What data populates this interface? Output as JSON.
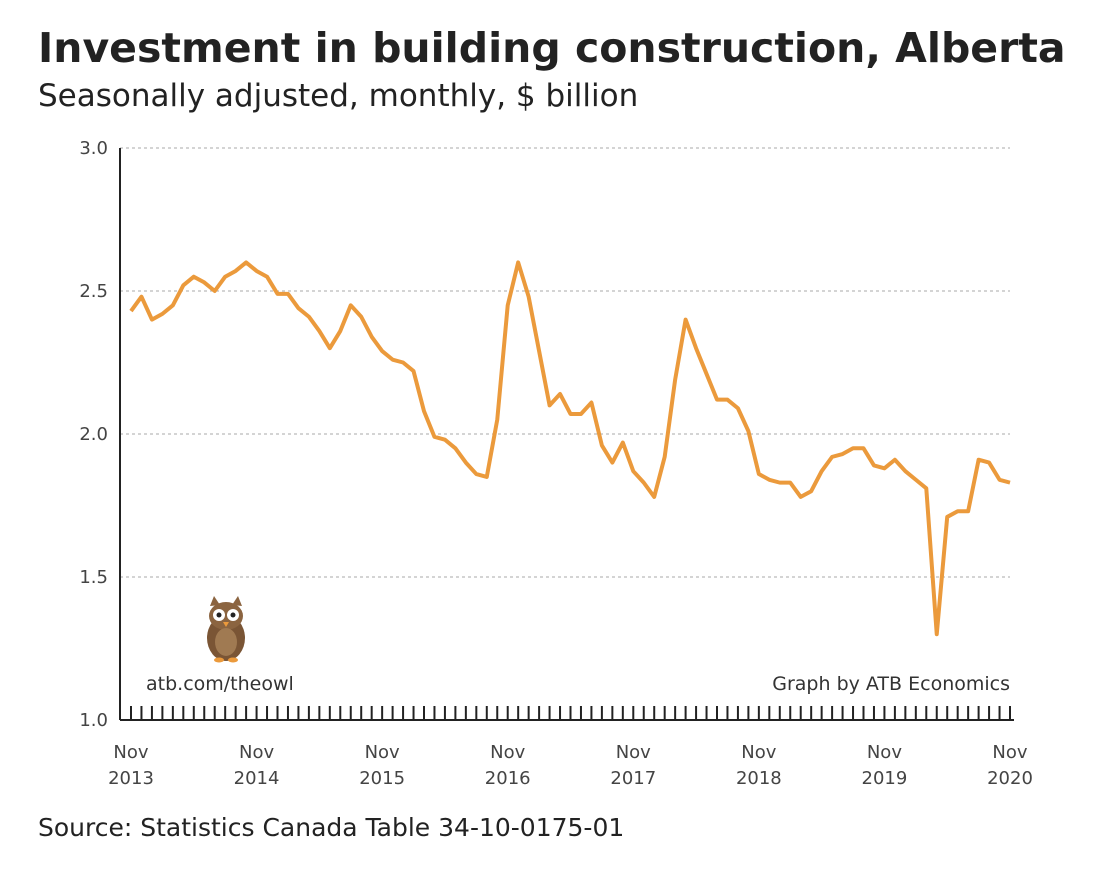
{
  "chart_data": {
    "type": "line",
    "title": "Investment in building construction, Alberta",
    "subtitle": "Seasonally adjusted, monthly, $ billion",
    "source": "Source: Statistics Canada Table 34-10-0175-01",
    "annotations": [
      "atb.com/theowl",
      "Graph by ATB Economics"
    ],
    "categories": [
      "Nov 2013",
      null,
      null,
      null,
      null,
      null,
      null,
      null,
      null,
      null,
      null,
      null,
      "Nov 2014",
      null,
      null,
      null,
      null,
      null,
      null,
      null,
      null,
      null,
      null,
      null,
      "Nov 2015",
      null,
      null,
      null,
      null,
      null,
      null,
      null,
      null,
      null,
      null,
      null,
      "Nov 2016",
      null,
      null,
      null,
      null,
      null,
      null,
      null,
      null,
      null,
      null,
      null,
      "Nov 2017",
      null,
      null,
      null,
      null,
      null,
      null,
      null,
      null,
      null,
      null,
      null,
      "Nov 2018",
      null,
      null,
      null,
      null,
      null,
      null,
      null,
      null,
      null,
      null,
      null,
      "Nov 2019",
      null,
      null,
      null,
      null,
      null,
      null,
      null,
      null,
      null,
      null,
      null,
      "Nov 2020"
    ],
    "series": [
      {
        "name": "Investment in building construction",
        "color": "#eb9a3c",
        "values": [
          2.43,
          2.48,
          2.4,
          2.42,
          2.45,
          2.52,
          2.55,
          2.53,
          2.5,
          2.55,
          2.57,
          2.6,
          2.57,
          2.55,
          2.49,
          2.49,
          2.44,
          2.41,
          2.36,
          2.3,
          2.36,
          2.45,
          2.41,
          2.34,
          2.29,
          2.26,
          2.25,
          2.22,
          2.08,
          1.99,
          1.98,
          1.95,
          1.9,
          1.86,
          1.85,
          2.05,
          2.45,
          2.6,
          2.48,
          2.29,
          2.1,
          2.14,
          2.07,
          2.07,
          2.11,
          1.96,
          1.9,
          1.97,
          1.87,
          1.83,
          1.78,
          1.92,
          2.19,
          2.4,
          2.3,
          2.21,
          2.12,
          2.12,
          2.09,
          2.01,
          1.86,
          1.84,
          1.83,
          1.83,
          1.78,
          1.8,
          1.87,
          1.92,
          1.93,
          1.95,
          1.95,
          1.89,
          1.88,
          1.91,
          1.87,
          1.84,
          1.81,
          1.3,
          1.71,
          1.73,
          1.73,
          1.91,
          1.9,
          1.84,
          1.83
        ]
      }
    ],
    "ylim": [
      1,
      3
    ],
    "yticks": [
      {
        "value": 1,
        "label": "1.0"
      },
      {
        "value": 1.5,
        "label": "1.5"
      },
      {
        "value": 2,
        "label": "2.0"
      },
      {
        "value": 2.5,
        "label": "2.5"
      },
      {
        "value": 3,
        "label": "3.0"
      }
    ],
    "grid": true
  }
}
